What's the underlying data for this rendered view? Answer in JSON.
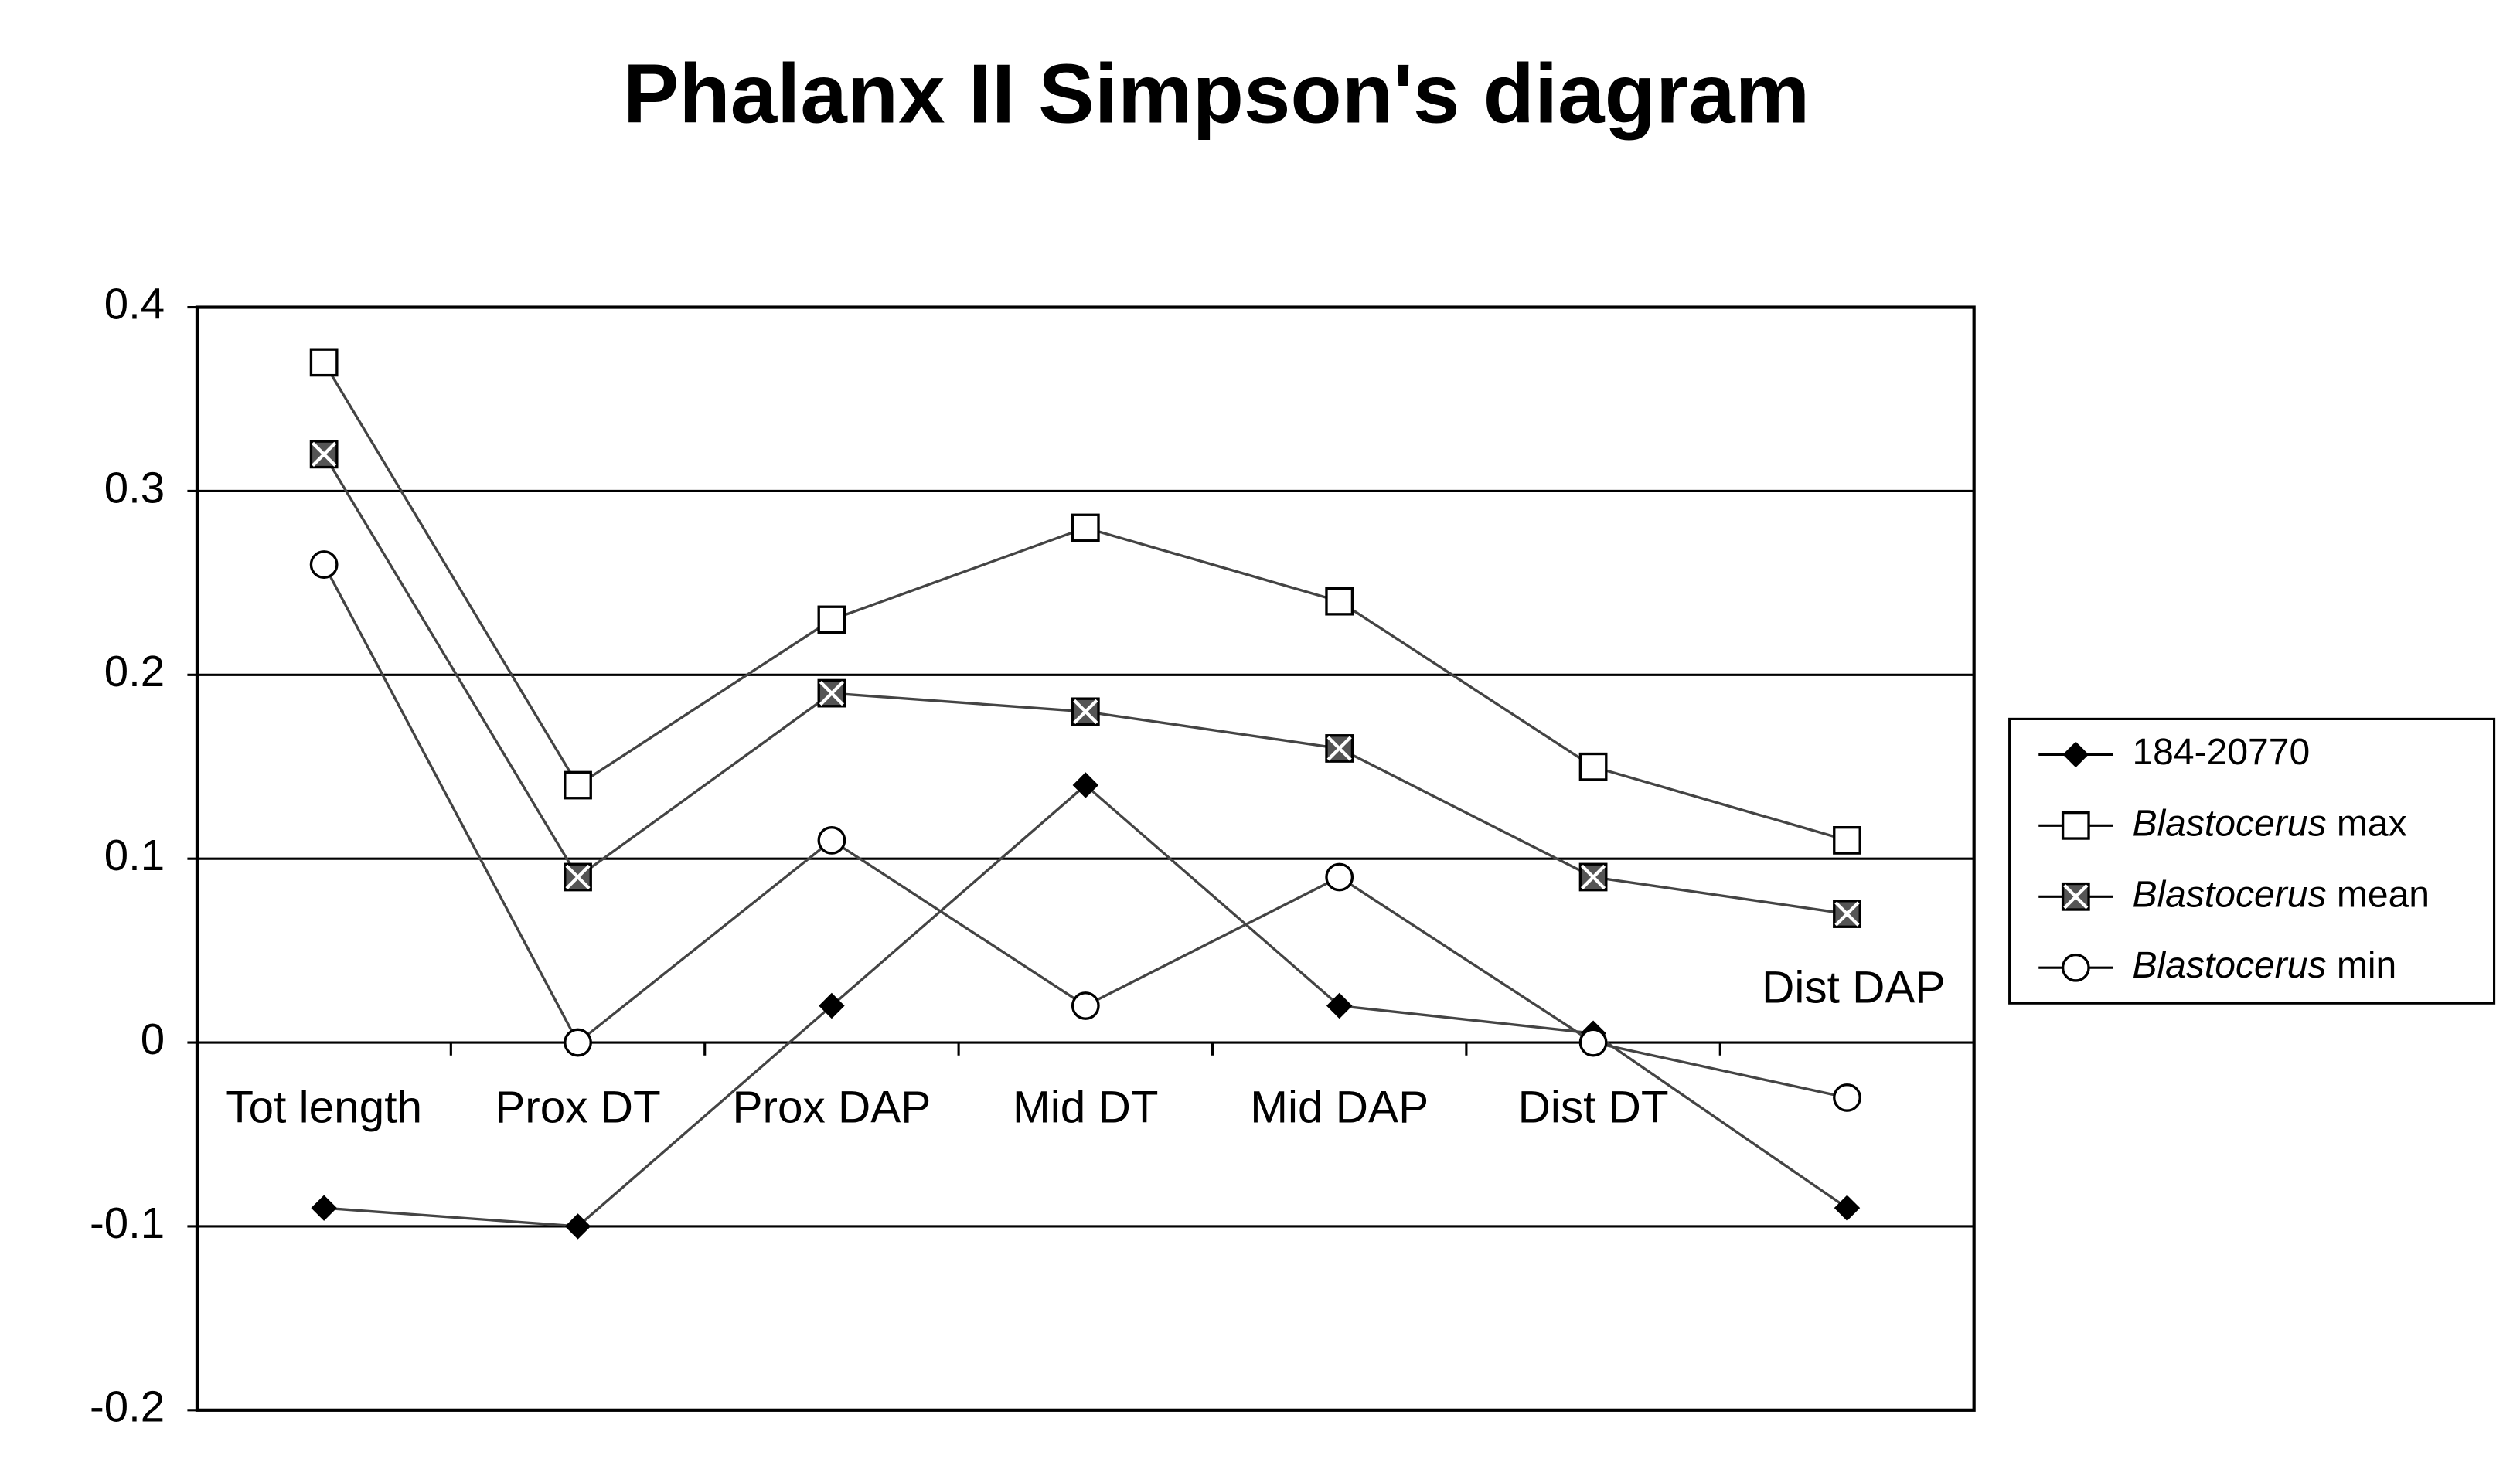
{
  "chart_data": {
    "type": "line",
    "title": "Phalanx II Simpson's diagram",
    "categories": [
      "Tot length",
      "Prox DT",
      "Prox DAP",
      "Mid DT",
      "Mid DAP",
      "Dist DT",
      "Dist DAP"
    ],
    "ylim": [
      -0.2,
      0.4
    ],
    "yticks": [
      0.4,
      0.3,
      0.2,
      0.1,
      0,
      -0.1,
      -0.2
    ],
    "grid": true,
    "legend": "right",
    "series": [
      {
        "name": "184-20770",
        "color": "#000000",
        "marker": "diamond",
        "values": [
          -0.09,
          -0.1,
          0.02,
          0.14,
          0.02,
          0.005,
          -0.09
        ]
      },
      {
        "name": "Blastocerus max",
        "color": "#000000",
        "marker": "square",
        "values": [
          0.37,
          0.14,
          0.23,
          0.28,
          0.24,
          0.15,
          0.11
        ]
      },
      {
        "name": "Blastocerus mean",
        "color": "#000000",
        "marker": "hatched-square",
        "values": [
          0.32,
          0.09,
          0.19,
          0.18,
          0.16,
          0.09,
          0.07
        ]
      },
      {
        "name": "Blastocerus min",
        "color": "#000000",
        "marker": "circle",
        "values": [
          0.26,
          0,
          0.11,
          0.02,
          0.09,
          0,
          -0.03
        ]
      }
    ]
  }
}
